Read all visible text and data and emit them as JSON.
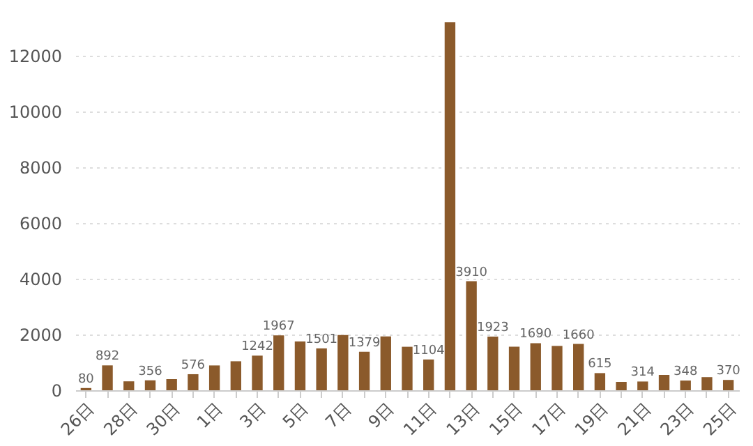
{
  "chart_data": {
    "type": "bar",
    "categories": [
      "26日",
      null,
      "28日",
      null,
      "30日",
      null,
      "1日",
      null,
      "3日",
      null,
      "5日",
      null,
      "7日",
      null,
      "9日",
      null,
      "11日",
      null,
      "13日",
      null,
      "15日",
      null,
      "17日",
      null,
      "19日",
      null,
      "21日",
      null,
      "23日",
      null,
      "25日"
    ],
    "values": [
      80,
      892,
      320,
      356,
      400,
      576,
      890,
      1040,
      1242,
      1967,
      1750,
      1501,
      1980,
      1379,
      1930,
      1560,
      1104,
      13200,
      3910,
      1923,
      1560,
      1690,
      1590,
      1660,
      615,
      300,
      314,
      550,
      348,
      470,
      370
    ],
    "value_labels": [
      "80",
      "892",
      null,
      "356",
      null,
      "576",
      null,
      null,
      "1242",
      "1967",
      null,
      "1501",
      null,
      "1379",
      null,
      null,
      "1104",
      null,
      "3910",
      "1923",
      null,
      "1690",
      null,
      "1660",
      "615",
      null,
      "314",
      null,
      "348",
      null,
      "370"
    ],
    "color": "#8b5a2b",
    "ylim": [
      0,
      13200
    ],
    "yticks": [
      0,
      2000,
      4000,
      6000,
      8000,
      10000,
      12000
    ],
    "grid": "y"
  }
}
